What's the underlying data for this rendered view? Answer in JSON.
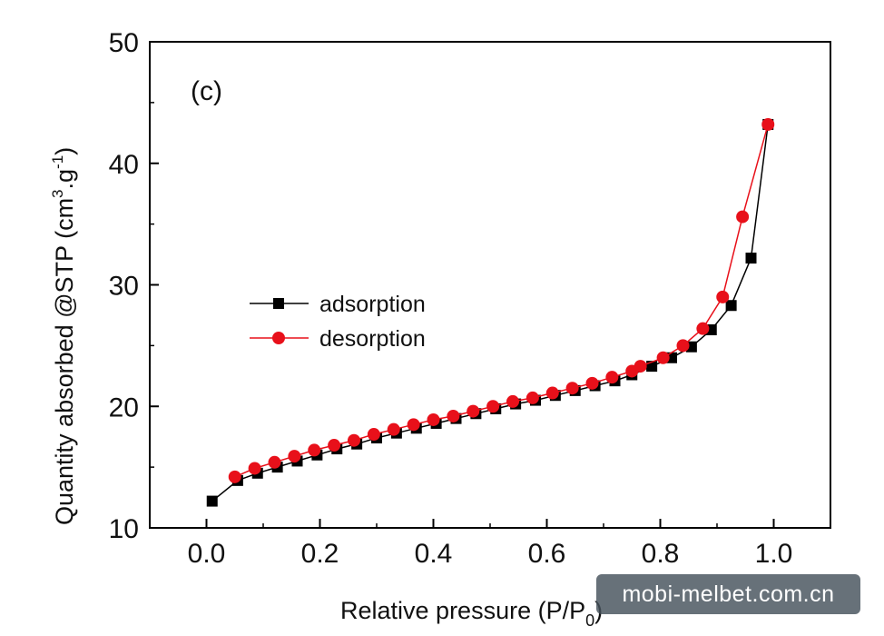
{
  "chart_data": {
    "type": "line",
    "panel_label": "(c)",
    "xlabel": "Relative pressure (P/P",
    "xlabel_sub": "0",
    "xlabel_end": ")",
    "ylabel": "Quantity absorbed @STP (cm",
    "ylabel_sup1": "3",
    "ylabel_mid": ".g",
    "ylabel_sup2": "-1",
    "ylabel_end": ")",
    "xlim": [
      -0.1,
      1.1
    ],
    "ylim": [
      10,
      50
    ],
    "xticks": [
      "0.0",
      "0.2",
      "0.4",
      "0.6",
      "0.8",
      "1.0"
    ],
    "yticks": [
      "10",
      "20",
      "30",
      "40",
      "50"
    ],
    "legend_position": "center-left",
    "series": [
      {
        "name": "adsorption",
        "color": "#000000",
        "marker": "square",
        "x": [
          0.01,
          0.055,
          0.09,
          0.125,
          0.16,
          0.195,
          0.23,
          0.265,
          0.3,
          0.335,
          0.37,
          0.405,
          0.44,
          0.475,
          0.51,
          0.545,
          0.58,
          0.615,
          0.65,
          0.685,
          0.72,
          0.75,
          0.785,
          0.82,
          0.855,
          0.89,
          0.925,
          0.96,
          0.99
        ],
        "y": [
          12.2,
          13.9,
          14.5,
          15.0,
          15.5,
          16.0,
          16.5,
          16.9,
          17.4,
          17.8,
          18.2,
          18.6,
          19.0,
          19.4,
          19.8,
          20.2,
          20.5,
          20.9,
          21.3,
          21.7,
          22.1,
          22.6,
          23.3,
          24.0,
          24.9,
          26.3,
          28.3,
          32.2,
          43.2
        ]
      },
      {
        "name": "desorption",
        "color": "#e8101a",
        "marker": "circle",
        "x": [
          0.05,
          0.085,
          0.12,
          0.155,
          0.19,
          0.225,
          0.26,
          0.295,
          0.33,
          0.365,
          0.4,
          0.435,
          0.47,
          0.505,
          0.54,
          0.575,
          0.61,
          0.645,
          0.68,
          0.715,
          0.75,
          0.765,
          0.805,
          0.84,
          0.875,
          0.91,
          0.945,
          0.99
        ],
        "y": [
          14.2,
          14.9,
          15.4,
          15.9,
          16.4,
          16.8,
          17.2,
          17.7,
          18.1,
          18.5,
          18.9,
          19.2,
          19.6,
          20.0,
          20.4,
          20.7,
          21.1,
          21.5,
          21.9,
          22.4,
          22.9,
          23.3,
          24.0,
          25.0,
          26.4,
          29.0,
          35.6,
          43.2
        ]
      }
    ]
  },
  "watermark": {
    "text": "mobi-melbet.com.cn"
  }
}
